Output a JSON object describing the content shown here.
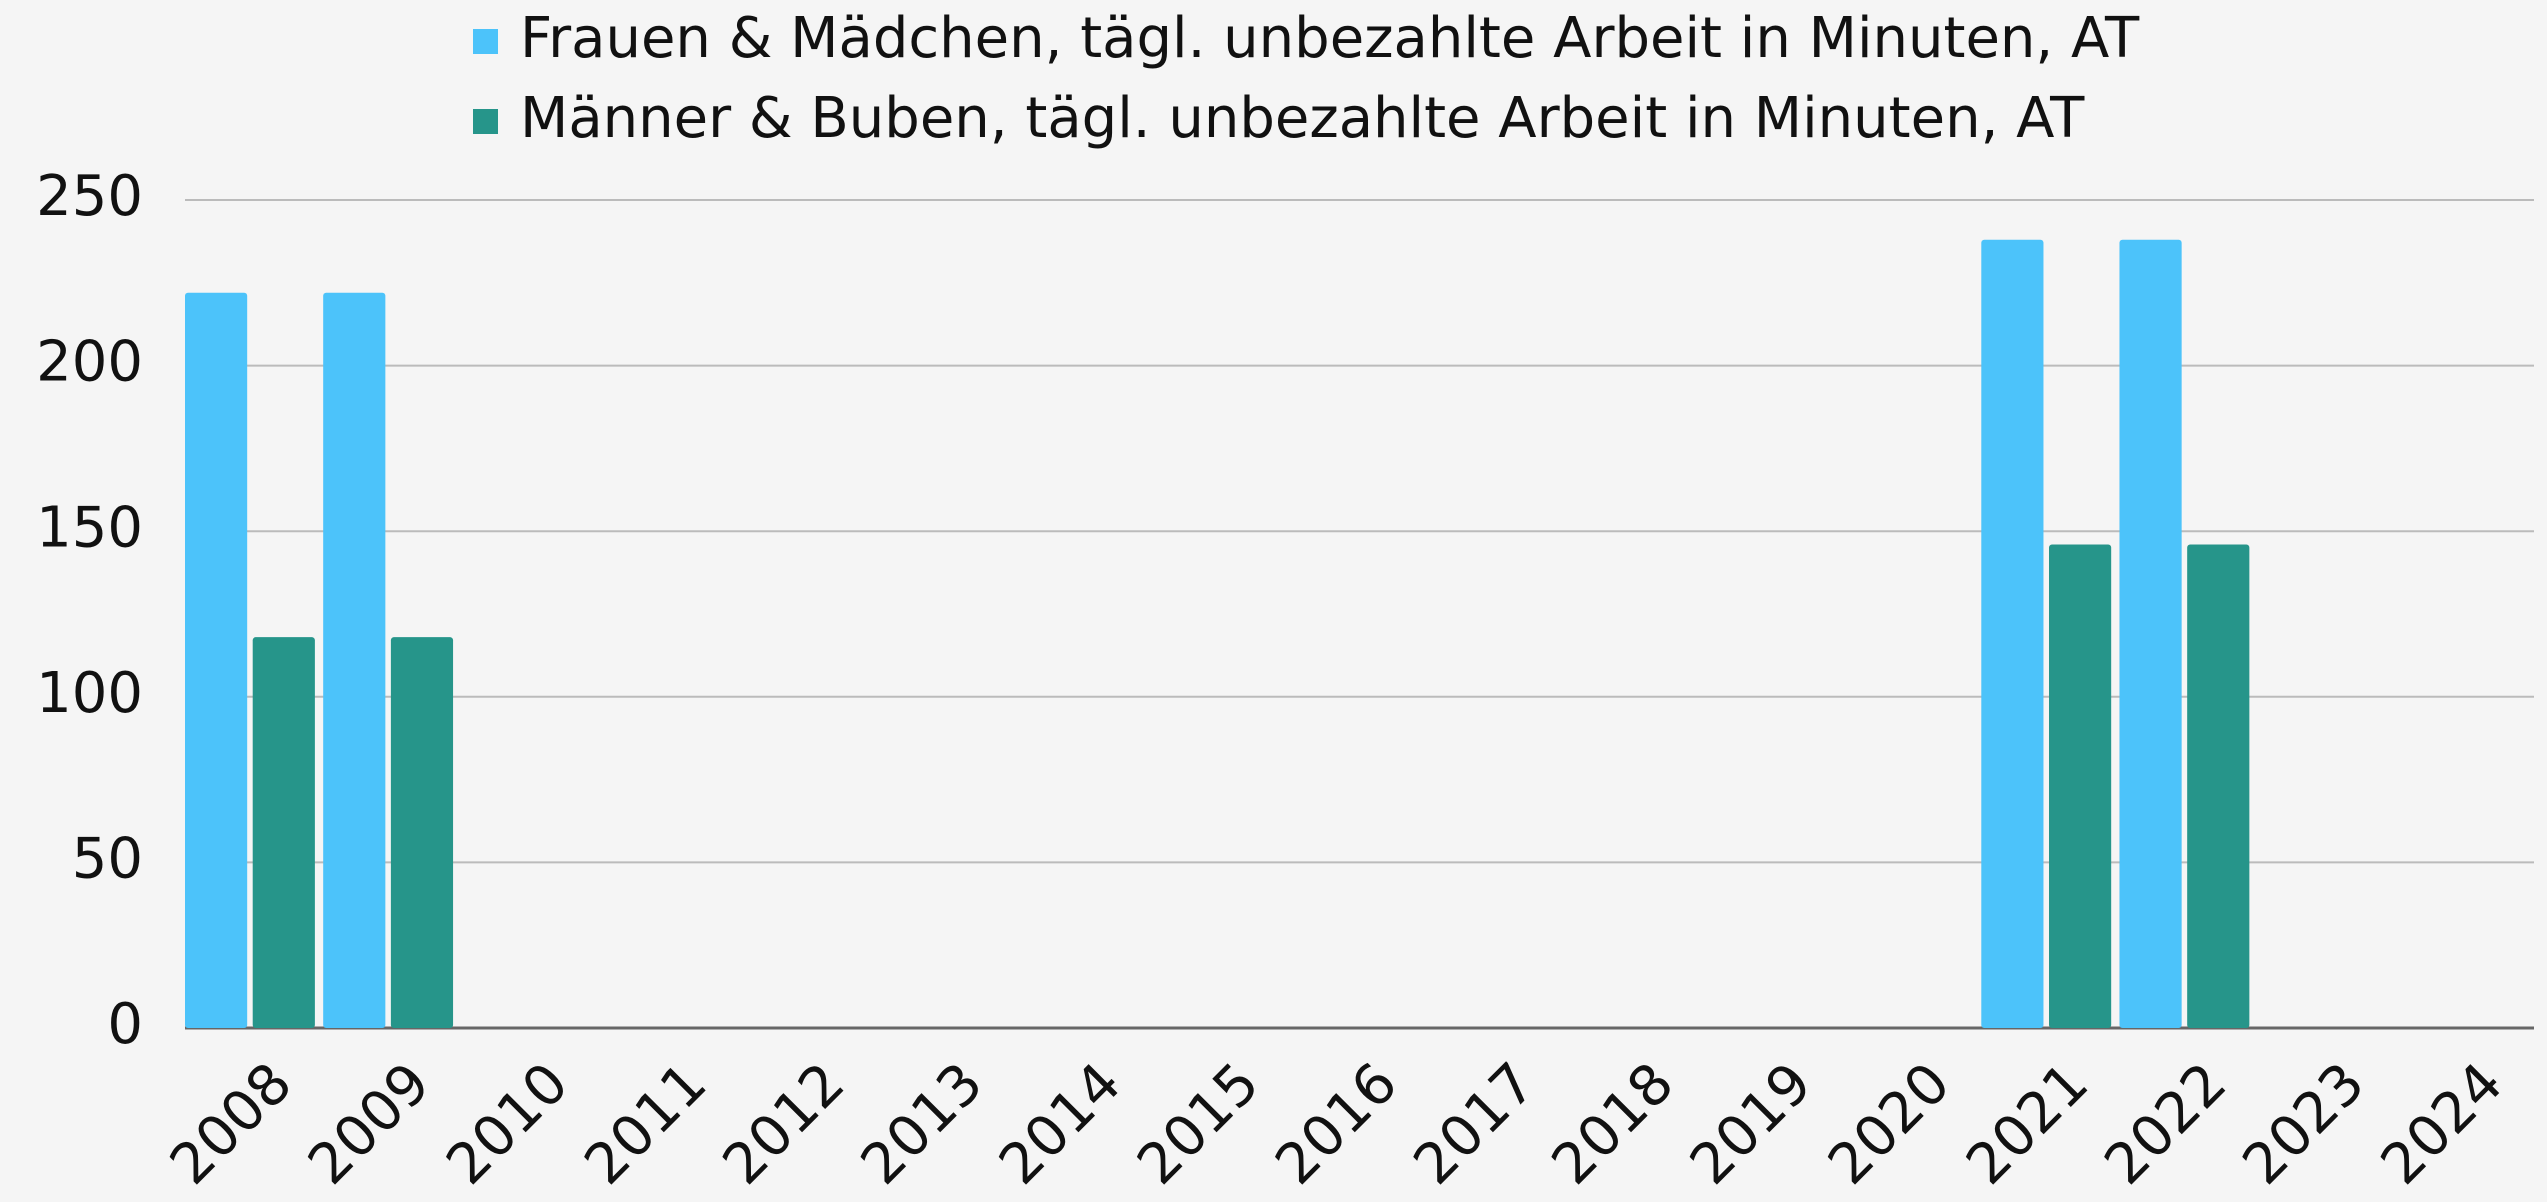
{
  "chart_data": {
    "type": "bar",
    "categories": [
      "2008",
      "2009",
      "2010",
      "2011",
      "2012",
      "2013",
      "2014",
      "2015",
      "2016",
      "2017",
      "2018",
      "2019",
      "2020",
      "2021",
      "2022",
      "2023",
      "2024"
    ],
    "series": [
      {
        "name": "Frauen & Mädchen, tägl. unbezahlte Arbeit in Minuten, AT",
        "color": "#4cc3fa",
        "values": [
          222,
          222,
          null,
          null,
          null,
          null,
          null,
          null,
          null,
          null,
          null,
          null,
          null,
          238,
          238,
          null,
          null
        ]
      },
      {
        "name": "Männer & Buben, tägl. unbezahlte Arbeit in Minuten, AT",
        "color": "#26958a",
        "values": [
          118,
          118,
          null,
          null,
          null,
          null,
          null,
          null,
          null,
          null,
          null,
          null,
          null,
          146,
          146,
          null,
          null
        ]
      }
    ],
    "ylim": [
      0,
      250
    ],
    "yticks": [
      0,
      50,
      100,
      150,
      200,
      250
    ],
    "grid": true,
    "legend": "top"
  }
}
